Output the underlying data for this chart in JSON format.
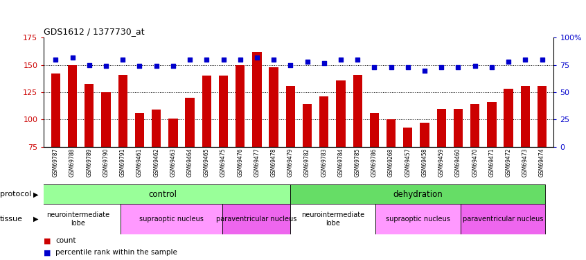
{
  "title": "GDS1612 / 1377730_at",
  "samples": [
    "GSM69787",
    "GSM69788",
    "GSM69789",
    "GSM69790",
    "GSM69791",
    "GSM69461",
    "GSM69462",
    "GSM69463",
    "GSM69464",
    "GSM69465",
    "GSM69475",
    "GSM69476",
    "GSM69477",
    "GSM69478",
    "GSM69479",
    "GSM69782",
    "GSM69783",
    "GSM69784",
    "GSM69785",
    "GSM69786",
    "GSM69268",
    "GSM69457",
    "GSM69458",
    "GSM69459",
    "GSM69460",
    "GSM69470",
    "GSM69471",
    "GSM69472",
    "GSM69473",
    "GSM69474"
  ],
  "counts": [
    142,
    150,
    133,
    125,
    141,
    106,
    109,
    101,
    120,
    140,
    140,
    150,
    162,
    148,
    131,
    114,
    121,
    136,
    141,
    106,
    100,
    93,
    97,
    110,
    110,
    114,
    116,
    128,
    131,
    131
  ],
  "percentiles": [
    80,
    82,
    75,
    74,
    80,
    74,
    74,
    74,
    80,
    80,
    80,
    80,
    82,
    80,
    75,
    78,
    77,
    80,
    80,
    73,
    73,
    73,
    70,
    73,
    73,
    74,
    73,
    78,
    80,
    80
  ],
  "ylim_left": [
    75,
    175
  ],
  "ylim_right": [
    0,
    100
  ],
  "yticks_left": [
    75,
    100,
    125,
    150,
    175
  ],
  "yticks_right": [
    0,
    25,
    50,
    75,
    100
  ],
  "ytick_right_labels": [
    "0",
    "25",
    "50",
    "75",
    "100%"
  ],
  "bar_color": "#cc0000",
  "dot_color": "#0000cc",
  "protocol_bands": [
    {
      "label": "control",
      "start": 0,
      "end": 14,
      "color": "#99ff99"
    },
    {
      "label": "dehydration",
      "start": 15,
      "end": 29,
      "color": "#66dd66"
    }
  ],
  "tissue_bands": [
    {
      "label": "neurointermediate\nlobe",
      "start": 0,
      "end": 4,
      "color": "#ffffff"
    },
    {
      "label": "supraoptic nucleus",
      "start": 5,
      "end": 10,
      "color": "#ff99ff"
    },
    {
      "label": "paraventricular nucleus",
      "start": 11,
      "end": 14,
      "color": "#ee66ee"
    },
    {
      "label": "neurointermediate\nlobe",
      "start": 15,
      "end": 19,
      "color": "#ffffff"
    },
    {
      "label": "supraoptic nucleus",
      "start": 20,
      "end": 24,
      "color": "#ff99ff"
    },
    {
      "label": "paraventricular nucleus",
      "start": 25,
      "end": 29,
      "color": "#ee66ee"
    }
  ]
}
